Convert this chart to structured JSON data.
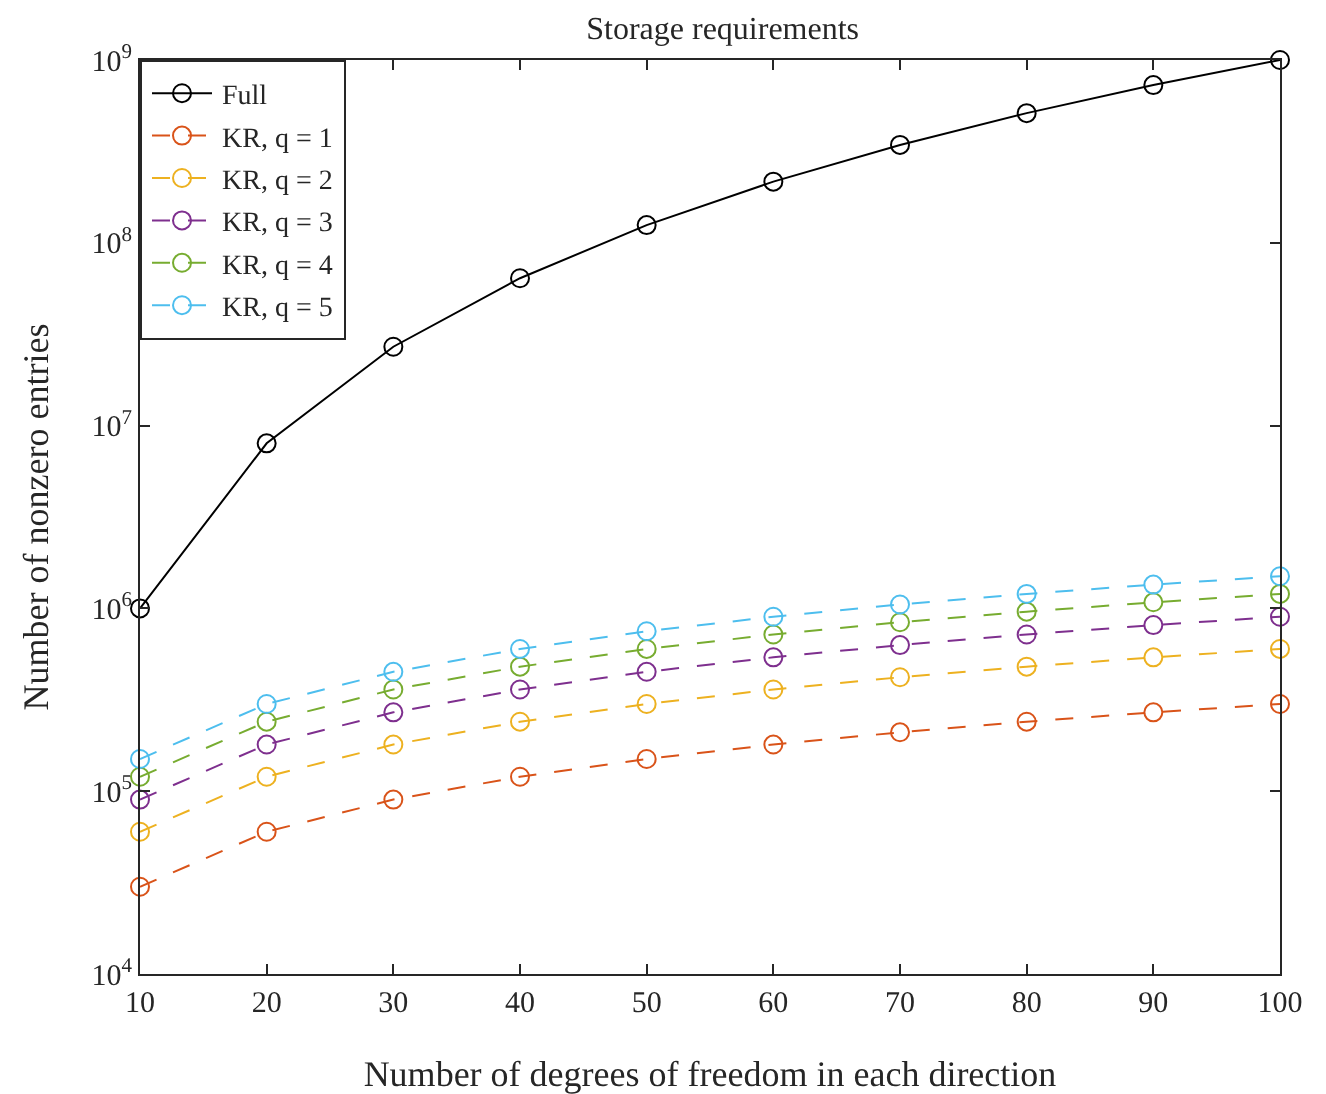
{
  "chart_data": {
    "type": "line",
    "title": "Storage requirements",
    "xlabel": "Number of degrees of freedom in each direction",
    "ylabel": "Number of nonzero entries",
    "x": [
      10,
      20,
      30,
      40,
      50,
      60,
      70,
      80,
      90,
      100
    ],
    "series": [
      {
        "name": "Full",
        "color": "#000000",
        "line_style": "solid",
        "values": [
          1000000,
          8000000,
          27000000,
          64000000,
          125000000,
          216000000,
          343000000,
          512000000,
          729000000,
          1000000000
        ]
      },
      {
        "name": "KR, q = 1",
        "color": "#d95319",
        "line_style": "dashed",
        "values": [
          30000,
          60000,
          90000,
          120000,
          150000,
          180000,
          210000,
          240000,
          270000,
          300000
        ]
      },
      {
        "name": "KR, q = 2",
        "color": "#edb120",
        "line_style": "dashed",
        "values": [
          60000,
          120000,
          180000,
          240000,
          300000,
          360000,
          420000,
          480000,
          540000,
          600000
        ]
      },
      {
        "name": "KR, q = 3",
        "color": "#7e2f8e",
        "line_style": "dashed",
        "values": [
          90000,
          180000,
          270000,
          360000,
          450000,
          540000,
          630000,
          720000,
          810000,
          900000
        ]
      },
      {
        "name": "KR, q = 4",
        "color": "#77ac30",
        "line_style": "dashed",
        "values": [
          120000,
          240000,
          360000,
          480000,
          600000,
          720000,
          840000,
          960000,
          1080000,
          1200000
        ]
      },
      {
        "name": "KR, q = 5",
        "color": "#4dbeee",
        "line_style": "dashed",
        "values": [
          150000,
          300000,
          450000,
          600000,
          750000,
          900000,
          1050000,
          1200000,
          1350000,
          1500000
        ]
      }
    ],
    "log": "y",
    "xlim": [
      10,
      100
    ],
    "xticks": [
      10,
      20,
      30,
      40,
      50,
      60,
      70,
      80,
      90,
      100
    ],
    "ylim": [
      10000,
      1000000000
    ],
    "yticks": [
      {
        "value": 10000,
        "label": "10$^{4}$"
      },
      {
        "value": 100000,
        "label": "10$^{5}$"
      },
      {
        "value": 1000000,
        "label": "10$^{6}$"
      },
      {
        "value": 10000000,
        "label": "10$^{7}$"
      },
      {
        "value": 100000000,
        "label": "10$^{8}$"
      },
      {
        "value": 1000000000,
        "label": "10$^{9}$"
      }
    ],
    "grid": false,
    "legend": "top left",
    "marker": "circle"
  }
}
